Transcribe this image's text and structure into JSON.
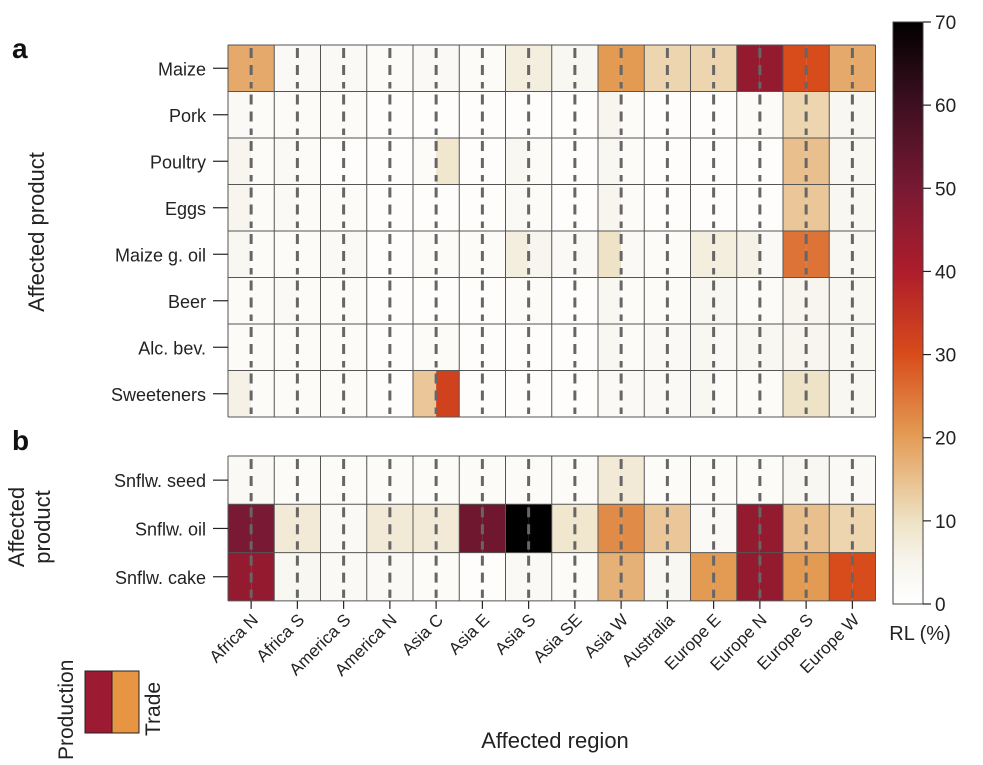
{
  "chart_data": {
    "type": "heatmap",
    "regions": [
      "Africa N",
      "Africa S",
      "America S",
      "America N",
      "Asia C",
      "Asia E",
      "Asia S",
      "Asia SE",
      "Asia W",
      "Australia",
      "Europe E",
      "Europe N",
      "Europe S",
      "Europe W"
    ],
    "xlabel": "Affected region",
    "panels": [
      {
        "label": "a",
        "ylabel": "Affected product",
        "products": [
          "Maize",
          "Pork",
          "Poultry",
          "Eggs",
          "Maize g. oil",
          "Beer",
          "Alc. bev.",
          "Sweeteners"
        ],
        "production": [
          [
            18,
            3,
            3,
            2,
            3,
            2,
            7,
            4,
            20,
            12,
            12,
            45,
            30,
            18
          ],
          [
            3,
            2,
            2,
            1,
            1,
            1,
            1,
            1,
            5,
            1,
            1,
            2,
            12,
            4
          ],
          [
            5,
            3,
            1,
            1,
            2,
            1,
            4,
            1,
            4,
            1,
            1,
            1,
            15,
            4
          ],
          [
            5,
            3,
            2,
            1,
            1,
            1,
            3,
            1,
            5,
            1,
            1,
            1,
            14,
            4
          ],
          [
            4,
            2,
            3,
            1,
            2,
            2,
            7,
            3,
            10,
            2,
            7,
            6,
            25,
            4
          ],
          [
            2,
            3,
            2,
            1,
            1,
            1,
            2,
            1,
            4,
            2,
            4,
            2,
            5,
            4
          ],
          [
            2,
            2,
            2,
            1,
            2,
            1,
            1,
            1,
            4,
            3,
            4,
            4,
            5,
            4
          ],
          [
            6,
            2,
            2,
            1,
            14,
            1,
            1,
            1,
            3,
            3,
            4,
            2,
            10,
            4
          ]
        ],
        "trade": [
          [
            18,
            3,
            3,
            2,
            3,
            2,
            7,
            4,
            20,
            12,
            12,
            45,
            30,
            18
          ],
          [
            2,
            2,
            2,
            1,
            1,
            1,
            1,
            1,
            2,
            1,
            1,
            2,
            12,
            4
          ],
          [
            2,
            2,
            1,
            1,
            9,
            1,
            2,
            1,
            2,
            1,
            1,
            1,
            15,
            4
          ],
          [
            2,
            2,
            2,
            1,
            1,
            1,
            2,
            1,
            2,
            1,
            1,
            1,
            14,
            4
          ],
          [
            2,
            2,
            3,
            1,
            2,
            2,
            5,
            3,
            3,
            2,
            7,
            3,
            25,
            4
          ],
          [
            2,
            2,
            2,
            1,
            1,
            1,
            2,
            1,
            2,
            2,
            4,
            2,
            5,
            4
          ],
          [
            2,
            2,
            2,
            1,
            2,
            1,
            1,
            1,
            2,
            3,
            3,
            4,
            5,
            4
          ],
          [
            2,
            2,
            2,
            1,
            32,
            1,
            1,
            1,
            3,
            3,
            2,
            2,
            10,
            4
          ]
        ]
      },
      {
        "label": "b",
        "ylabel": "Affected product",
        "products": [
          "Snflw. seed",
          "Snflw. oil",
          "Snflw. cake"
        ],
        "production": [
          [
            3,
            2,
            2,
            2,
            2,
            2,
            2,
            2,
            8,
            2,
            2,
            2,
            4,
            3
          ],
          [
            50,
            8,
            3,
            8,
            8,
            52,
            70,
            9,
            22,
            14,
            3,
            45,
            15,
            12
          ],
          [
            45,
            4,
            3,
            3,
            2,
            1,
            3,
            2,
            17,
            4,
            20,
            45,
            20,
            30
          ]
        ],
        "trade": [
          [
            3,
            2,
            2,
            2,
            2,
            2,
            2,
            2,
            8,
            2,
            2,
            2,
            4,
            3
          ],
          [
            50,
            8,
            3,
            8,
            8,
            52,
            70,
            9,
            22,
            14,
            3,
            45,
            15,
            12
          ],
          [
            45,
            4,
            3,
            3,
            2,
            1,
            3,
            2,
            17,
            4,
            20,
            45,
            20,
            30
          ]
        ]
      }
    ],
    "colorbar": {
      "label": "RL (%)",
      "min": 0,
      "max": 70,
      "ticks": [
        0,
        10,
        20,
        30,
        40,
        50,
        60,
        70
      ]
    },
    "legend": {
      "left_label": "Production",
      "right_label": "Trade",
      "left_color": "#9c1b33",
      "right_color": "#e79443"
    }
  }
}
